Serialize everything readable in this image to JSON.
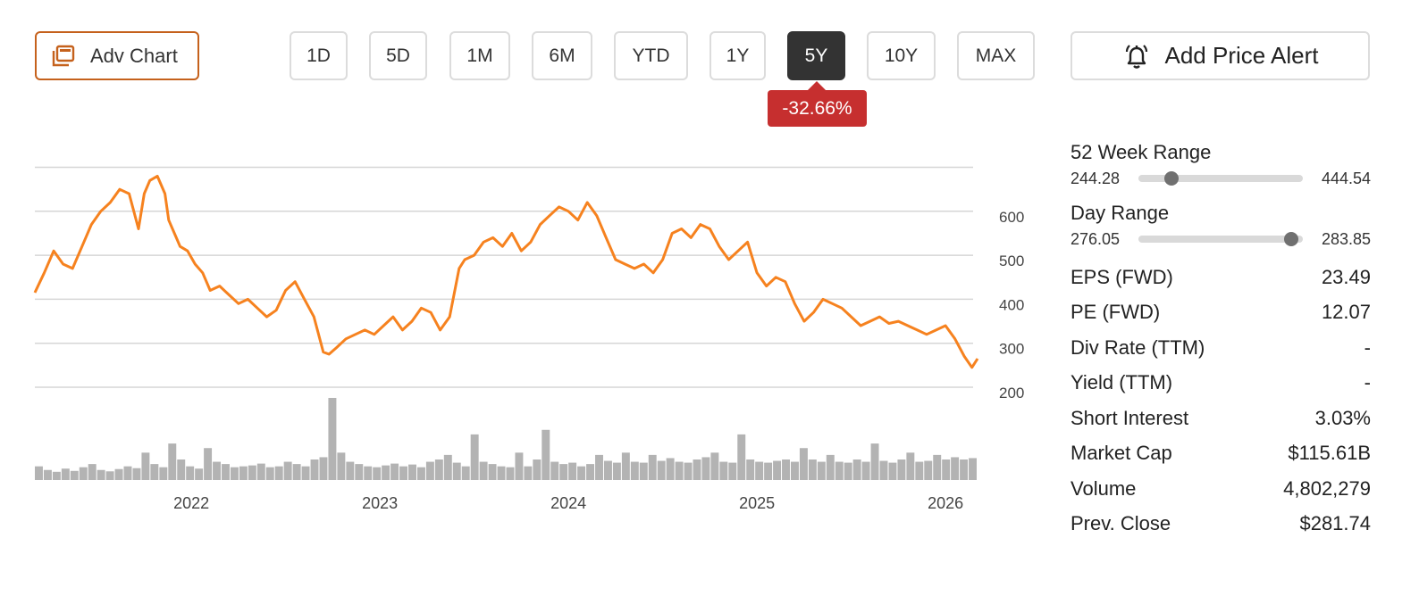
{
  "toolbar": {
    "adv_chart_label": "Adv Chart",
    "ranges": [
      "1D",
      "5D",
      "1M",
      "6M",
      "YTD",
      "1Y",
      "5Y",
      "10Y",
      "MAX"
    ],
    "active_range": "5Y",
    "change_pct": "-32.66%",
    "add_alert_label": "Add Price Alert"
  },
  "colors": {
    "accent": "#c5611c",
    "price_line": "#f6821f",
    "negative": "#c62f2f",
    "volume": "#b3b3b3",
    "active_button": "#333333"
  },
  "stats": {
    "week52": {
      "label": "52 Week Range",
      "low": "244.28",
      "high": "444.54",
      "current_fraction": 0.2
    },
    "day": {
      "label": "Day Range",
      "low": "276.05",
      "high": "283.85",
      "current_fraction": 0.93
    },
    "rows": [
      {
        "label": "EPS (FWD)",
        "value": "23.49"
      },
      {
        "label": "PE (FWD)",
        "value": "12.07"
      },
      {
        "label": "Div Rate (TTM)",
        "value": "-"
      },
      {
        "label": "Yield (TTM)",
        "value": "-"
      },
      {
        "label": "Short Interest",
        "value": "3.03%"
      },
      {
        "label": "Market Cap",
        "value": "$115.61B"
      },
      {
        "label": "Volume",
        "value": "4,802,279"
      },
      {
        "label": "Prev. Close",
        "value": "$281.74"
      }
    ]
  },
  "chart_data": {
    "type": "line",
    "x_start": 2021.17,
    "x_end": 2026.17,
    "ylim": [
      200,
      650
    ],
    "y_ticks": [
      200,
      300,
      400,
      500,
      600
    ],
    "x_ticks": [
      2022,
      2023,
      2024,
      2025,
      2026
    ],
    "grid": true,
    "series": [
      {
        "x": [
          2021.17,
          2021.22,
          2021.27,
          2021.32,
          2021.37,
          2021.42,
          2021.47,
          2021.52,
          2021.57,
          2021.62,
          2021.67,
          2021.72,
          2021.75,
          2021.78,
          2021.82,
          2021.86,
          2021.88,
          2021.92,
          2021.94,
          2021.98,
          2022.02,
          2022.06,
          2022.1,
          2022.15,
          2022.2,
          2022.25,
          2022.3,
          2022.35,
          2022.4,
          2022.45,
          2022.5,
          2022.55,
          2022.6,
          2022.65,
          2022.7,
          2022.73,
          2022.77,
          2022.82,
          2022.87,
          2022.92,
          2022.97,
          2023.02,
          2023.07,
          2023.12,
          2023.17,
          2023.22,
          2023.27,
          2023.32,
          2023.37,
          2023.42,
          2023.45,
          2023.5,
          2023.55,
          2023.6,
          2023.65,
          2023.7,
          2023.75,
          2023.8,
          2023.85,
          2023.9,
          2023.95,
          2024.0,
          2024.05,
          2024.1,
          2024.15,
          2024.2,
          2024.25,
          2024.3,
          2024.35,
          2024.4,
          2024.45,
          2024.5,
          2024.55,
          2024.6,
          2024.65,
          2024.7,
          2024.75,
          2024.8,
          2024.85,
          2024.9,
          2024.95,
          2025.0,
          2025.05,
          2025.1,
          2025.15,
          2025.2,
          2025.25,
          2025.3,
          2025.35,
          2025.4,
          2025.45,
          2025.5,
          2025.55,
          2025.6,
          2025.65,
          2025.7,
          2025.75,
          2025.8,
          2025.85,
          2025.9,
          2025.95,
          2026.0,
          2026.05,
          2026.1,
          2026.14,
          2026.17
        ],
        "values": [
          415,
          460,
          510,
          480,
          470,
          520,
          570,
          600,
          620,
          650,
          640,
          560,
          640,
          670,
          680,
          640,
          580,
          540,
          520,
          510,
          480,
          460,
          420,
          430,
          410,
          390,
          400,
          380,
          360,
          375,
          420,
          440,
          400,
          360,
          280,
          275,
          290,
          310,
          320,
          330,
          320,
          340,
          360,
          330,
          350,
          380,
          370,
          330,
          360,
          470,
          490,
          500,
          530,
          540,
          520,
          550,
          510,
          530,
          570,
          590,
          610,
          600,
          580,
          620,
          590,
          540,
          490,
          480,
          470,
          480,
          460,
          490,
          550,
          560,
          540,
          570,
          560,
          520,
          490,
          510,
          530,
          460,
          430,
          450,
          440,
          390,
          350,
          370,
          400,
          390,
          380,
          360,
          340,
          350,
          360,
          345,
          350,
          340,
          330,
          320,
          330,
          340,
          310,
          270,
          245,
          265
        ]
      }
    ],
    "volume": [
      30,
      22,
      18,
      25,
      20,
      28,
      35,
      22,
      19,
      24,
      30,
      26,
      60,
      35,
      28,
      80,
      45,
      30,
      25,
      70,
      40,
      35,
      28,
      30,
      32,
      36,
      28,
      30,
      40,
      35,
      30,
      45,
      50,
      180,
      60,
      40,
      35,
      30,
      28,
      32,
      36,
      30,
      34,
      28,
      40,
      45,
      55,
      38,
      30,
      100,
      40,
      35,
      30,
      28,
      60,
      30,
      45,
      110,
      40,
      35,
      38,
      30,
      35,
      55,
      42,
      38,
      60,
      40,
      38,
      55,
      42,
      48,
      40,
      38,
      45,
      50,
      60,
      40,
      38,
      100,
      45,
      40,
      38,
      42,
      45,
      40,
      70,
      45,
      40,
      55,
      40,
      38,
      45,
      40,
      80,
      42,
      38,
      45,
      60,
      40,
      42,
      55,
      45,
      50,
      45,
      48
    ]
  }
}
